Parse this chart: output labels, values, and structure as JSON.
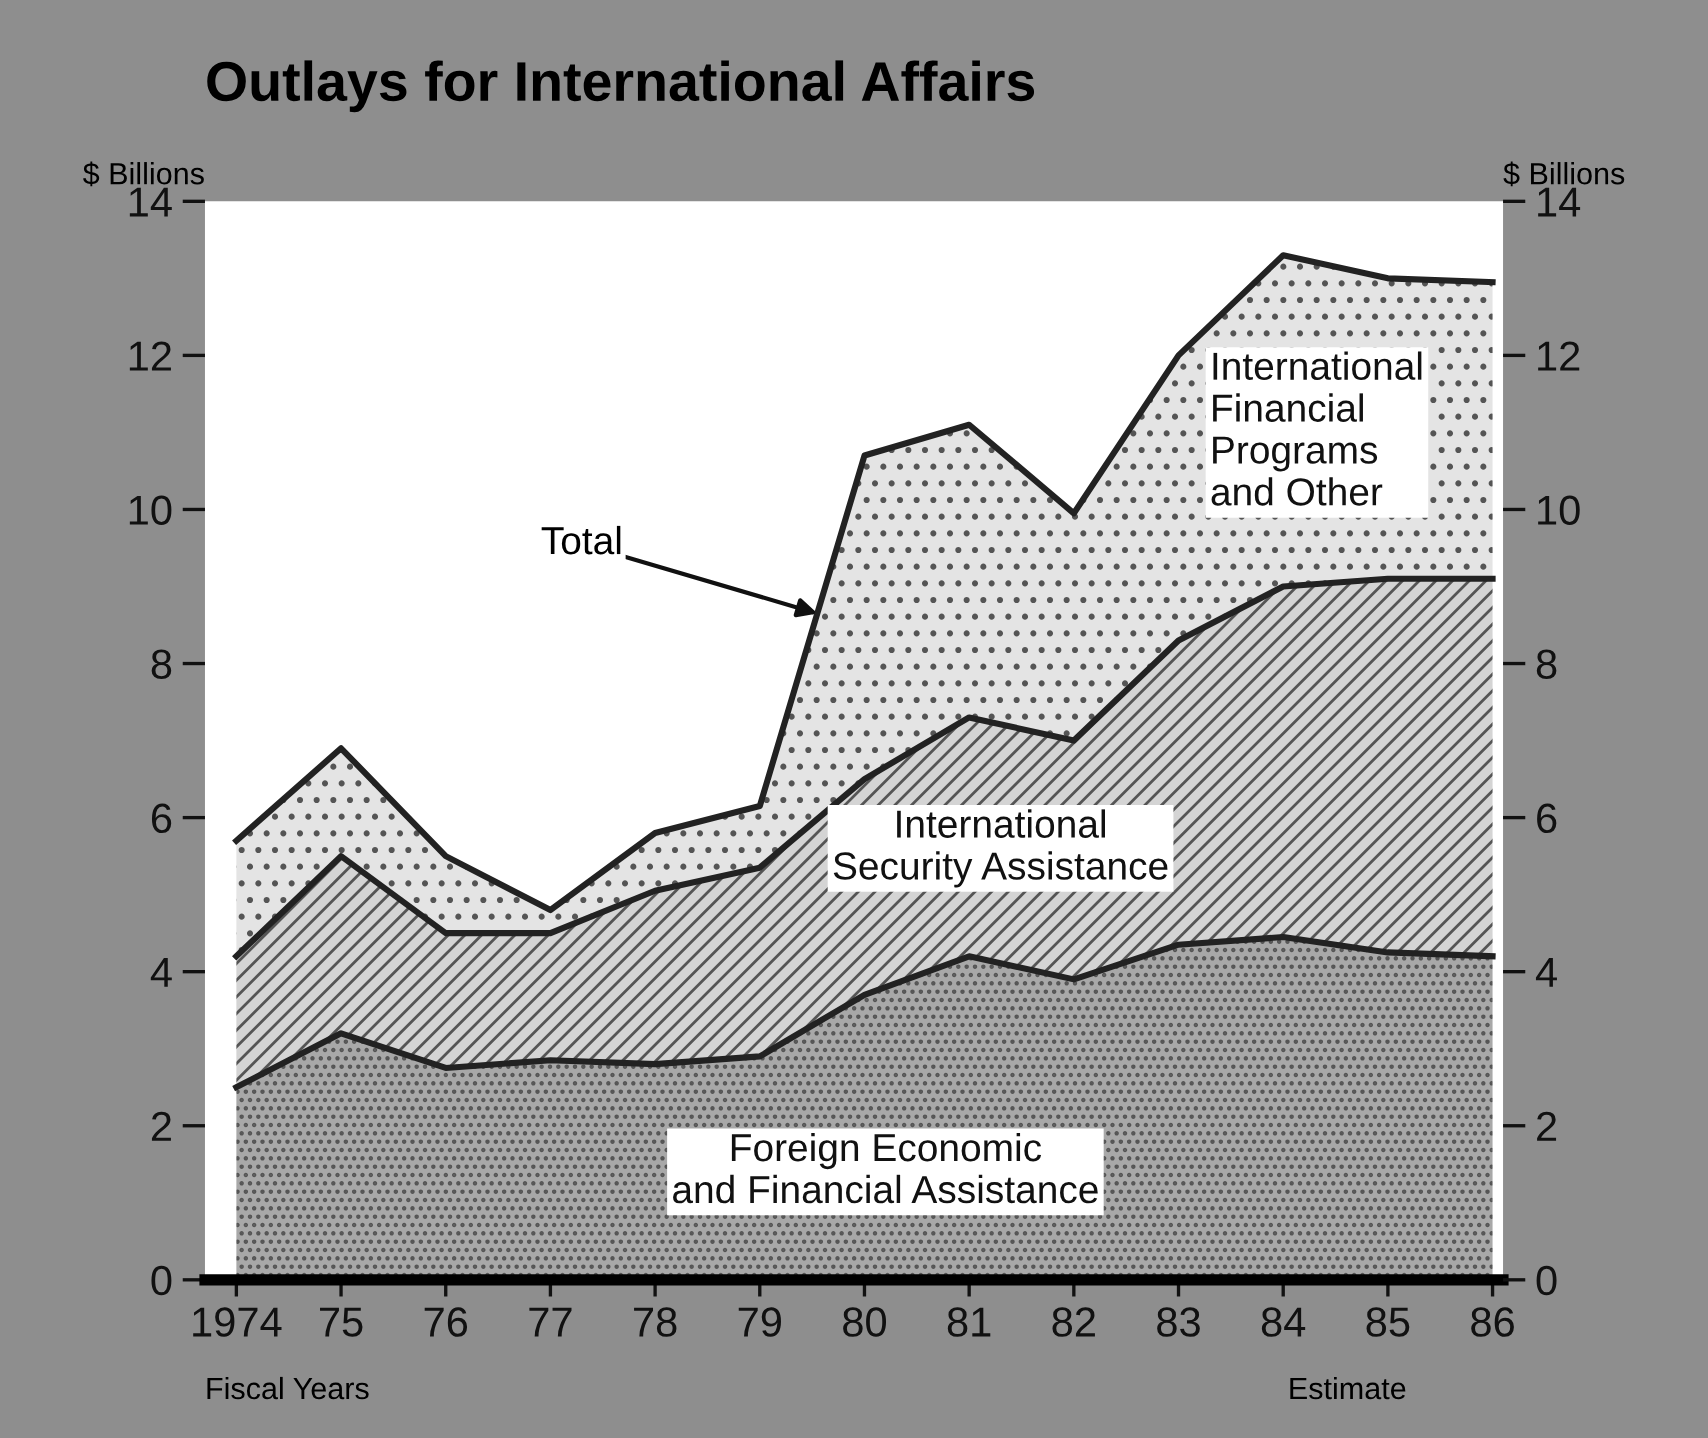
{
  "chart_data": {
    "type": "area",
    "stacked": true,
    "title": "Outlays for International Affairs",
    "ylabel": "$ Billions",
    "y2label": "$ Billions",
    "x": [
      1974,
      1975,
      1976,
      1977,
      1978,
      1979,
      1980,
      1981,
      1982,
      1983,
      1984,
      1985,
      1986
    ],
    "xlim": [
      1973.7,
      1986.1
    ],
    "xticks": [
      1974,
      {
        "value": 1975,
        "label": "75"
      },
      {
        "value": 1976,
        "label": "76"
      },
      {
        "value": 1977,
        "label": "77"
      },
      {
        "value": 1978,
        "label": "78"
      },
      {
        "value": 1979,
        "label": "79"
      },
      {
        "value": 1980,
        "label": "80"
      },
      {
        "value": 1981,
        "label": "81"
      },
      {
        "value": 1982,
        "label": "82"
      },
      {
        "value": 1983,
        "label": "83"
      },
      {
        "value": 1984,
        "label": "84"
      },
      {
        "value": 1985,
        "label": "85"
      },
      {
        "value": 1986,
        "label": "86"
      }
    ],
    "ylim": [
      0,
      14
    ],
    "yticks": [
      0,
      2,
      4,
      6,
      8,
      10,
      12,
      14
    ],
    "y2lim": [
      0,
      14
    ],
    "y2ticks": [
      0,
      2,
      4,
      6,
      8,
      10,
      12,
      14
    ],
    "series": [
      {
        "name": "Foreign Economic\nand Financial Assistance",
        "color": "#a8a8a8",
        "values": [
          2.5,
          3.2,
          2.75,
          2.85,
          2.8,
          2.9,
          3.7,
          4.2,
          3.9,
          4.35,
          4.45,
          4.25,
          4.2
        ]
      },
      {
        "name": "International\nSecurity Assistance",
        "color": "#d4d4d4",
        "values": [
          1.7,
          2.3,
          1.75,
          1.65,
          2.25,
          2.45,
          2.8,
          3.1,
          3.1,
          3.95,
          4.55,
          4.85,
          4.9
        ]
      },
      {
        "name": "International\nFinancial\nPrograms\nand Other",
        "color": "#e4e4e4",
        "values": [
          1.5,
          1.4,
          1.0,
          0.3,
          0.75,
          0.8,
          4.2,
          3.8,
          2.95,
          3.7,
          4.3,
          3.9,
          3.85
        ]
      }
    ],
    "annotations": [
      {
        "text": "Total",
        "x": 1979.55,
        "y": 8.65
      },
      "Fiscal Years",
      "Estimate"
    ],
    "grid": false
  }
}
